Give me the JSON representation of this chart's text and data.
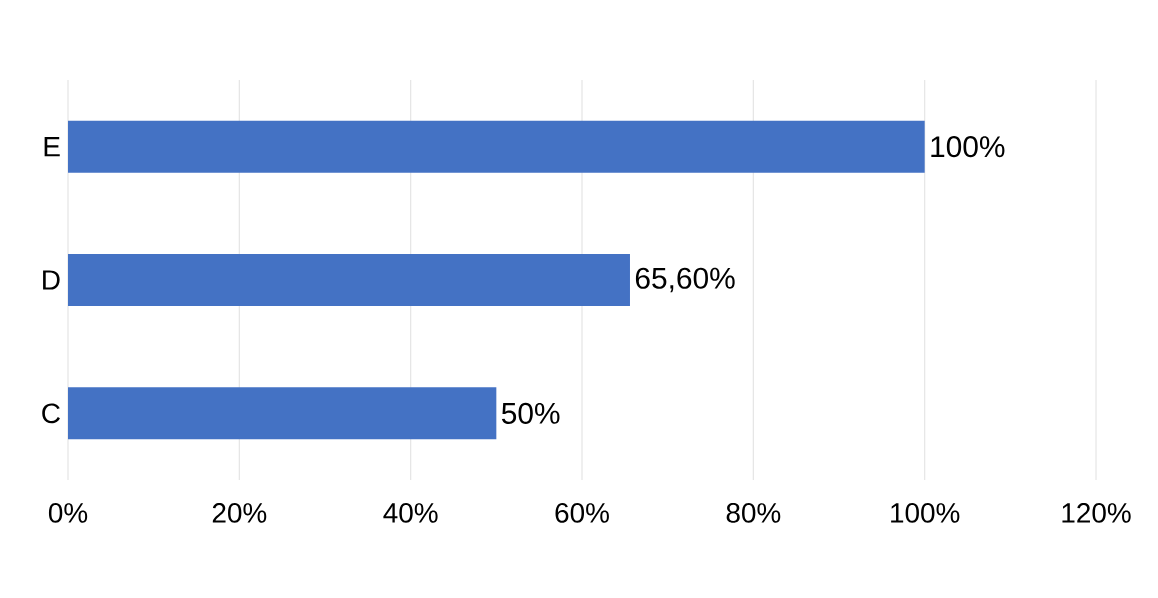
{
  "chart_data": {
    "type": "bar",
    "orientation": "horizontal",
    "categories": [
      "E",
      "D",
      "C"
    ],
    "values": [
      100,
      65.6,
      50
    ],
    "value_labels": [
      "100%",
      "65,60%",
      "50%"
    ],
    "color": "#4472c4",
    "xlim": [
      0,
      120
    ],
    "xticks": [
      {
        "value": 0,
        "label": "0%"
      },
      {
        "value": 20,
        "label": "20%"
      },
      {
        "value": 40,
        "label": "40%"
      },
      {
        "value": 60,
        "label": "60%"
      },
      {
        "value": 80,
        "label": "80%"
      },
      {
        "value": 100,
        "label": "100%"
      },
      {
        "value": 120,
        "label": "120%"
      }
    ],
    "grid": "x"
  }
}
